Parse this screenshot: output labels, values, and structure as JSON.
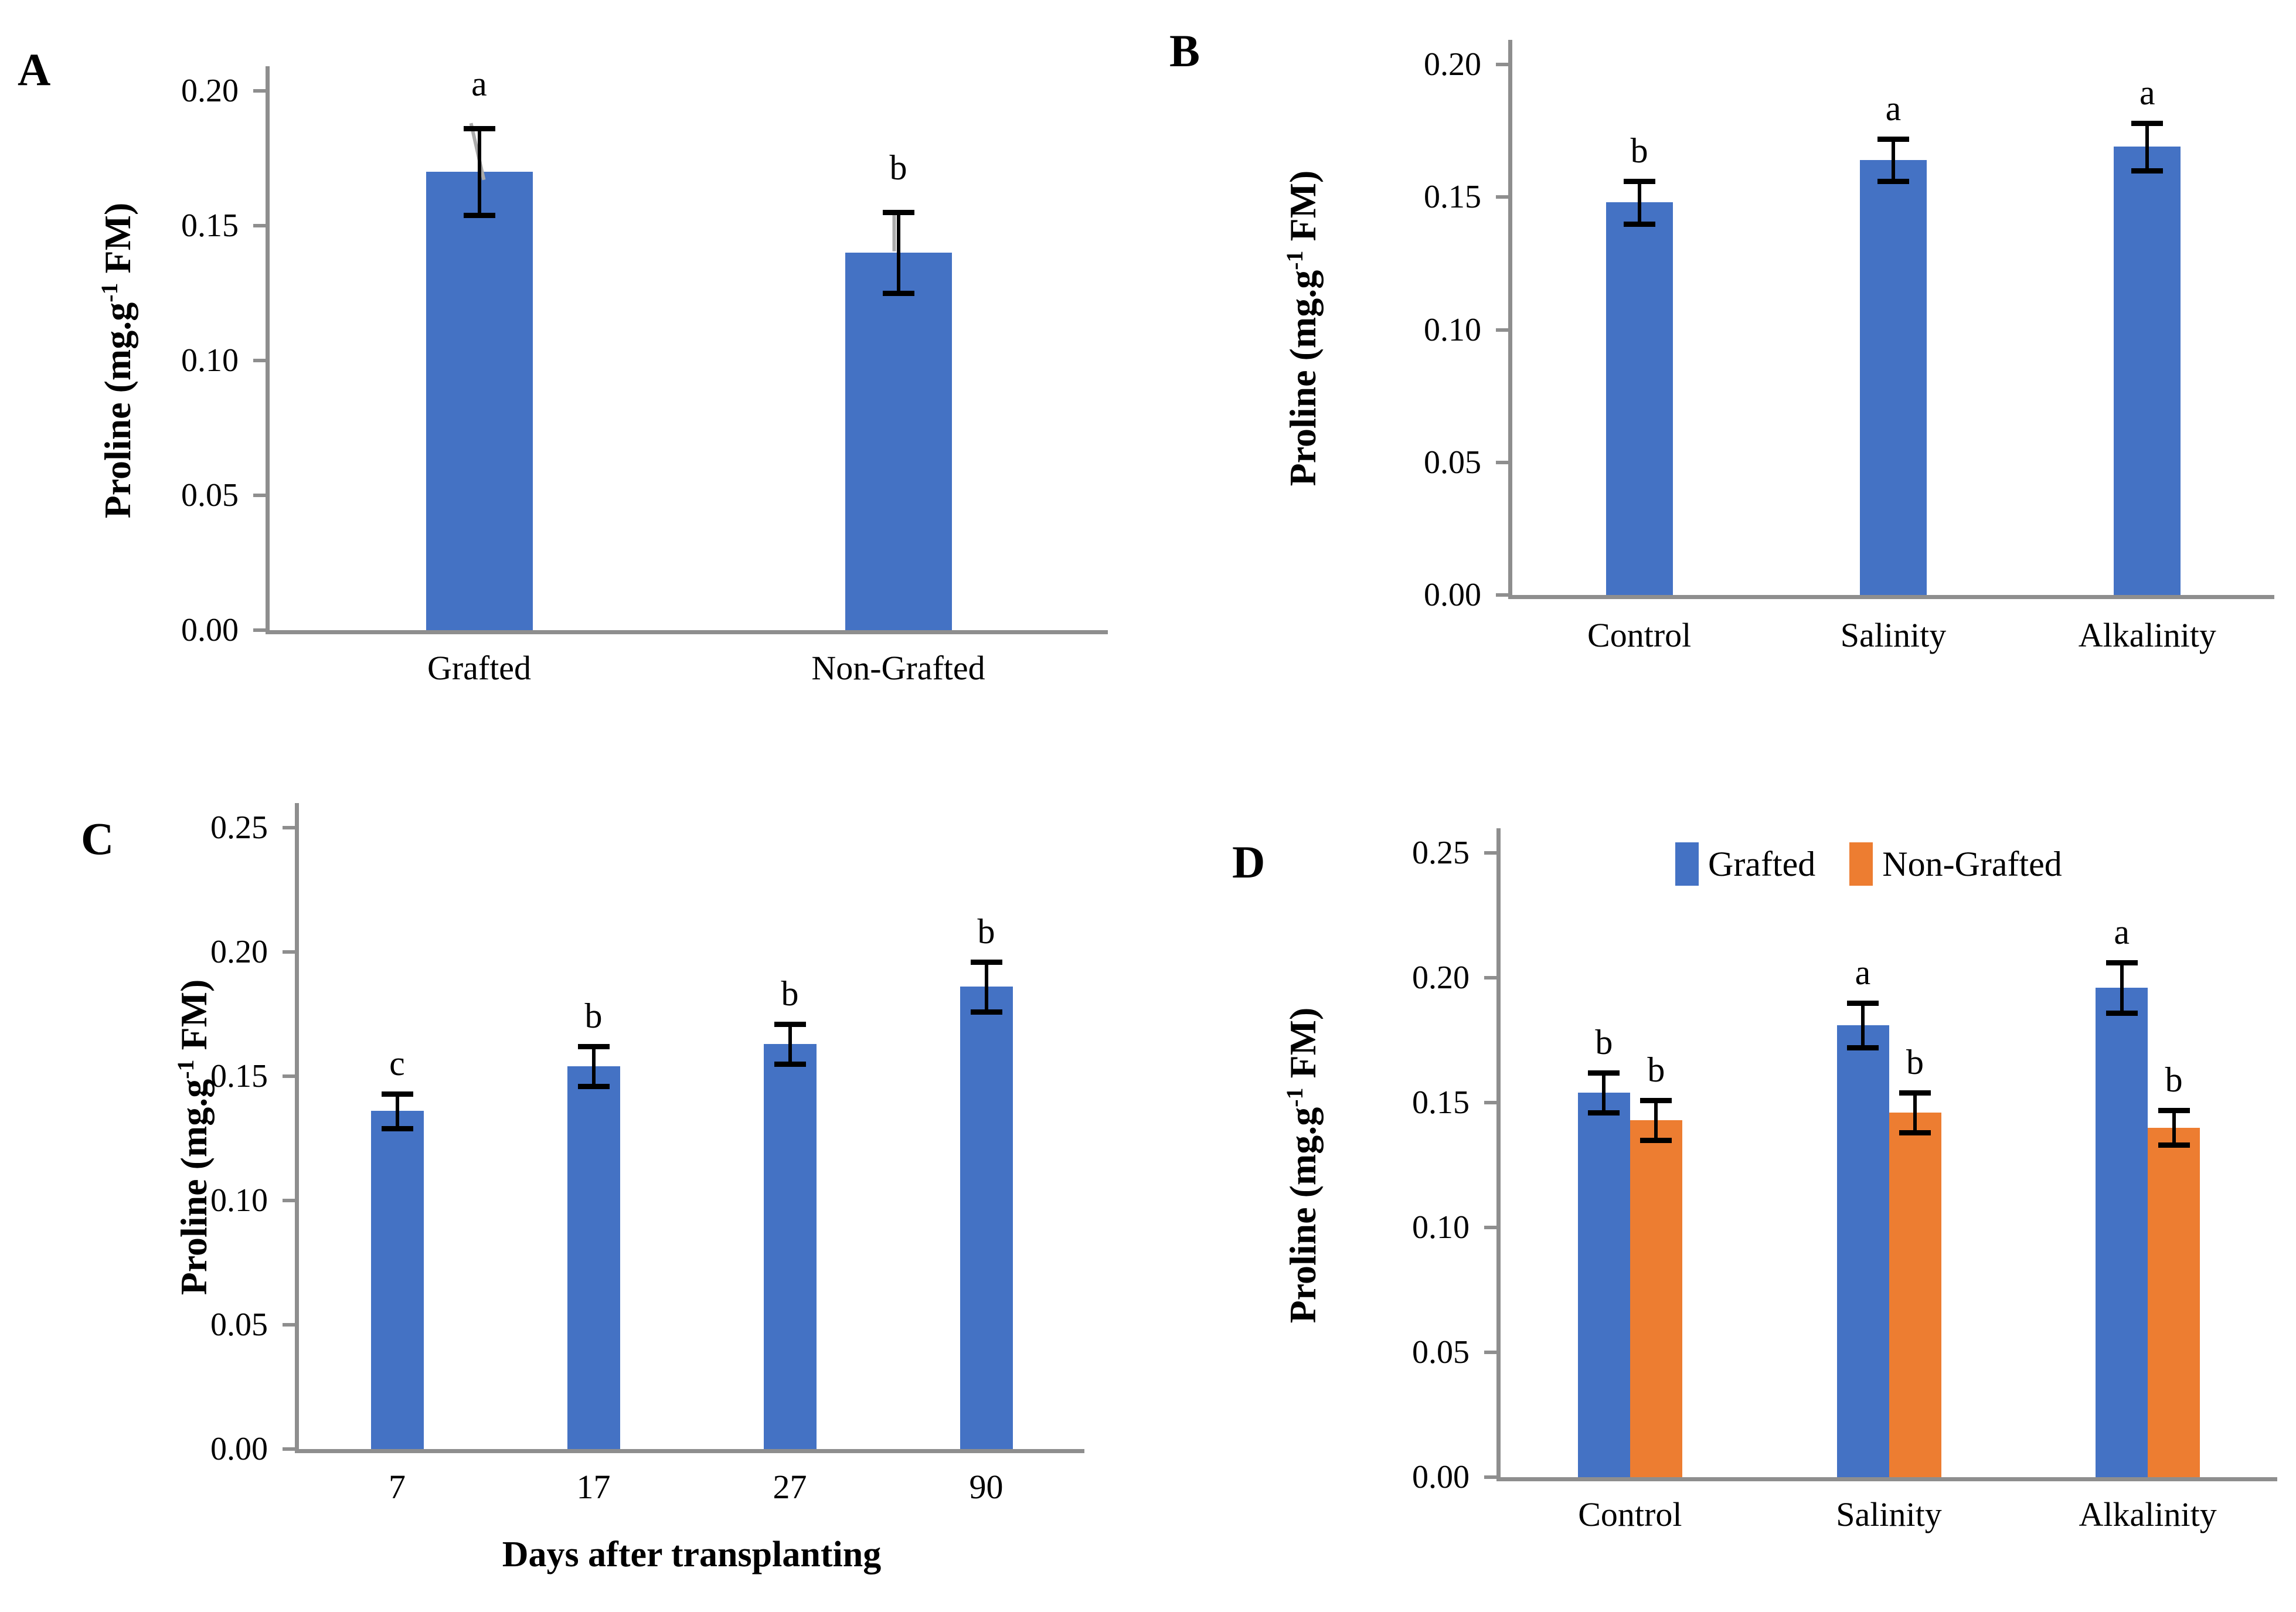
{
  "figure": {
    "background": "#ffffff",
    "palette": {
      "grafted_blue": "#4472C4",
      "non_grafted_orange": "#ED7D31",
      "axis_gray": "#8E8E8E",
      "error_black": "#000000",
      "leader_gray": "#ABABAB",
      "text_black": "#000000"
    }
  },
  "y_axis_title": {
    "prefix": "Proline (mg.g",
    "superscript": "-1",
    "suffix": " FM)",
    "full_text": "Proline (mg.g-1 FM)"
  },
  "legend": {
    "items": [
      {
        "label": "Grafted",
        "color": "#4472C4"
      },
      {
        "label": "Non-Grafted",
        "color": "#ED7D31"
      }
    ]
  },
  "chart_data": [
    {
      "panel": "A",
      "panel_label": "A",
      "type": "bar",
      "title": "",
      "ylabel": "Proline (mg.g-1 FM)",
      "xlabel": "",
      "ylim": [
        0,
        0.2
      ],
      "yticks": [
        0.0,
        0.05,
        0.1,
        0.15,
        0.2
      ],
      "ytick_labels": [
        "0.00",
        "0.05",
        "0.10",
        "0.15",
        "0.20"
      ],
      "grid": false,
      "legend_shown": false,
      "categories": [
        "Grafted",
        "Non-Grafted"
      ],
      "series": [
        {
          "name": "Proline",
          "color": "#4472C4",
          "values": [
            0.17,
            0.14
          ],
          "errors": [
            0.016,
            0.015
          ],
          "sig_letters": [
            "a",
            "b"
          ]
        }
      ],
      "leader_lines": [
        {
          "category": 0,
          "x1_offset": -14,
          "v1": 0.188,
          "x2_offset": 8,
          "v2": 0.167
        },
        {
          "category": 1,
          "x1_offset": -7,
          "v1": 0.1555,
          "x2_offset": -7,
          "v2": 0.1405
        }
      ]
    },
    {
      "panel": "B",
      "panel_label": "B",
      "type": "bar",
      "title": "",
      "ylabel": "Proline (mg.g-1 FM)",
      "xlabel": "",
      "ylim": [
        0,
        0.2
      ],
      "yticks": [
        0.0,
        0.05,
        0.1,
        0.15,
        0.2
      ],
      "ytick_labels": [
        "0.00",
        "0.05",
        "0.10",
        "0.15",
        "0.20"
      ],
      "grid": false,
      "legend_shown": false,
      "categories": [
        "Control",
        "Salinity",
        "Alkalinity"
      ],
      "series": [
        {
          "name": "Proline",
          "color": "#4472C4",
          "values": [
            0.148,
            0.164,
            0.169
          ],
          "errors": [
            0.008,
            0.008,
            0.009
          ],
          "sig_letters": [
            "b",
            "a",
            "a"
          ]
        }
      ],
      "leader_lines": []
    },
    {
      "panel": "C",
      "panel_label": "C",
      "type": "bar",
      "title": "",
      "ylabel": "Proline (mg.g-1 FM)",
      "xlabel": "Days after transplanting",
      "ylim": [
        0,
        0.25
      ],
      "yticks": [
        0.0,
        0.05,
        0.1,
        0.15,
        0.2,
        0.25
      ],
      "ytick_labels": [
        "0.00",
        "0.05",
        "0.10",
        "0.15",
        "0.20",
        "0.25"
      ],
      "grid": false,
      "legend_shown": false,
      "categories": [
        "7",
        "17",
        "27",
        "90"
      ],
      "series": [
        {
          "name": "Proline",
          "color": "#4472C4",
          "values": [
            0.136,
            0.154,
            0.163,
            0.186
          ],
          "errors": [
            0.007,
            0.008,
            0.008,
            0.01
          ],
          "sig_letters": [
            "c",
            "b",
            "b",
            "b"
          ]
        }
      ],
      "leader_lines": []
    },
    {
      "panel": "D",
      "panel_label": "D",
      "type": "bar",
      "title": "",
      "ylabel": "Proline (mg.g-1 FM)",
      "xlabel": "",
      "ylim": [
        0,
        0.25
      ],
      "yticks": [
        0.0,
        0.05,
        0.1,
        0.15,
        0.2,
        0.25
      ],
      "ytick_labels": [
        "0.00",
        "0.05",
        "0.10",
        "0.15",
        "0.20",
        "0.25"
      ],
      "grid": false,
      "legend_shown": true,
      "legend_position": "top-right",
      "categories": [
        "Control",
        "Salinity",
        "Alkalinity"
      ],
      "series": [
        {
          "name": "Grafted",
          "color": "#4472C4",
          "values": [
            0.154,
            0.181,
            0.196
          ],
          "errors": [
            0.008,
            0.009,
            0.01
          ],
          "sig_letters": [
            "b",
            "a",
            "a"
          ]
        },
        {
          "name": "Non-Grafted",
          "color": "#ED7D31",
          "values": [
            0.143,
            0.146,
            0.14
          ],
          "errors": [
            0.008,
            0.008,
            0.007
          ],
          "sig_letters": [
            "b",
            "b",
            "b"
          ]
        }
      ],
      "leader_lines": []
    }
  ]
}
